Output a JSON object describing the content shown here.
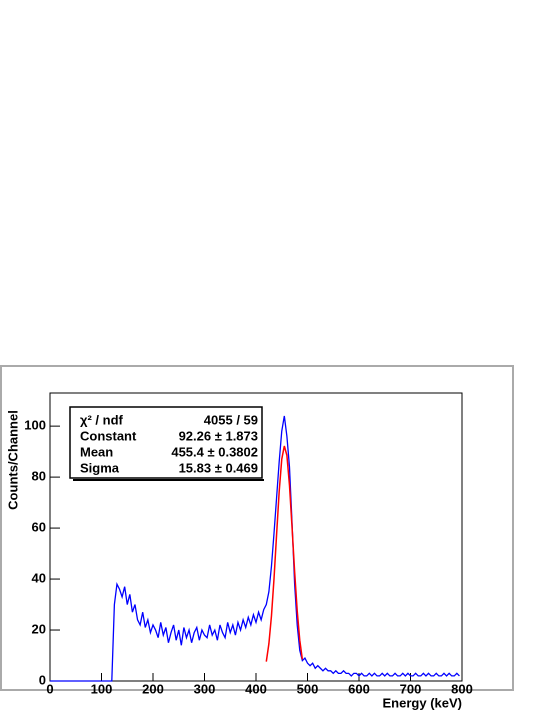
{
  "chart_data": {
    "type": "line",
    "x_label": "Energy (keV)",
    "y_label": "Counts/Channel",
    "x": [
      0,
      5,
      10,
      15,
      20,
      25,
      30,
      35,
      40,
      45,
      50,
      55,
      60,
      65,
      70,
      75,
      80,
      85,
      90,
      95,
      100,
      105,
      110,
      115,
      120,
      125,
      130,
      135,
      140,
      145,
      150,
      155,
      160,
      165,
      170,
      175,
      180,
      185,
      190,
      195,
      200,
      205,
      210,
      215,
      220,
      225,
      230,
      235,
      240,
      245,
      250,
      255,
      260,
      265,
      270,
      275,
      280,
      285,
      290,
      295,
      300,
      305,
      310,
      315,
      320,
      325,
      330,
      335,
      340,
      345,
      350,
      355,
      360,
      365,
      370,
      375,
      380,
      385,
      390,
      395,
      400,
      405,
      410,
      415,
      420,
      425,
      430,
      435,
      440,
      445,
      450,
      455,
      460,
      465,
      470,
      475,
      480,
      485,
      490,
      495,
      500,
      505,
      510,
      515,
      520,
      525,
      530,
      535,
      540,
      545,
      550,
      555,
      560,
      565,
      570,
      575,
      580,
      585,
      590,
      595,
      600,
      605,
      610,
      615,
      620,
      625,
      630,
      635,
      640,
      645,
      650,
      655,
      660,
      665,
      670,
      675,
      680,
      685,
      690,
      695,
      700,
      705,
      710,
      715,
      720,
      725,
      730,
      735,
      740,
      745,
      750,
      755,
      760,
      765,
      770,
      775,
      780,
      785,
      790,
      795
    ],
    "series": [
      {
        "color": "#0000ff",
        "values": [
          0,
          0,
          0,
          0,
          0,
          0,
          0,
          0,
          0,
          0,
          0,
          0,
          0,
          0,
          0,
          0,
          0,
          0,
          0,
          0,
          0,
          0,
          0,
          0,
          0,
          30,
          38,
          36,
          33,
          37,
          30,
          34,
          27,
          30,
          24,
          22,
          27,
          21,
          24,
          19,
          22,
          20,
          17,
          23,
          18,
          21,
          15,
          19,
          22,
          16,
          20,
          14,
          21,
          17,
          20,
          15,
          19,
          21,
          16,
          20,
          18,
          17,
          22,
          18,
          20,
          16,
          22,
          19,
          17,
          23,
          19,
          22,
          18,
          23,
          20,
          24,
          21,
          25,
          22,
          26,
          23,
          27,
          24,
          28,
          30,
          35,
          45,
          58,
          72,
          86,
          98,
          104,
          96,
          84,
          62,
          38,
          22,
          12,
          8,
          9,
          7,
          6,
          7,
          5,
          6,
          5,
          4,
          5,
          4,
          4,
          3,
          4,
          3,
          3,
          4,
          3,
          3,
          2,
          3,
          3,
          2,
          3,
          2,
          2,
          3,
          2,
          3,
          2,
          2,
          3,
          2,
          3,
          2,
          2,
          3,
          2,
          2,
          3,
          2,
          3,
          2,
          2,
          3,
          2,
          2,
          3,
          2,
          3,
          2,
          2,
          3,
          2,
          2,
          3,
          2,
          3,
          2,
          2,
          3,
          2
        ]
      }
    ],
    "fit": {
      "color": "#ff0000",
      "x": [
        420,
        425,
        430,
        435,
        440,
        445,
        450,
        455,
        460,
        465,
        470,
        475,
        480,
        485,
        490
      ],
      "values": [
        7.6,
        14.6,
        25.5,
        40.2,
        57.5,
        74.3,
        87.0,
        92.2,
        88.5,
        76.8,
        60.3,
        42.9,
        27.6,
        16.0,
        8.5
      ]
    },
    "stats": [
      {
        "label": "χ² / ndf",
        "value": "4055 / 59"
      },
      {
        "label": "Constant",
        "value": "92.26 ± 1.873"
      },
      {
        "label": "Mean",
        "value": "455.4 ± 0.3802"
      },
      {
        "label": "Sigma",
        "value": "15.83 ± 0.469"
      }
    ],
    "xlim": [
      0,
      800
    ],
    "ylim": [
      0,
      113
    ],
    "xticks": [
      0,
      100,
      200,
      300,
      400,
      500,
      600,
      700,
      800
    ],
    "yticks": [
      0,
      20,
      40,
      60,
      80,
      100
    ]
  }
}
